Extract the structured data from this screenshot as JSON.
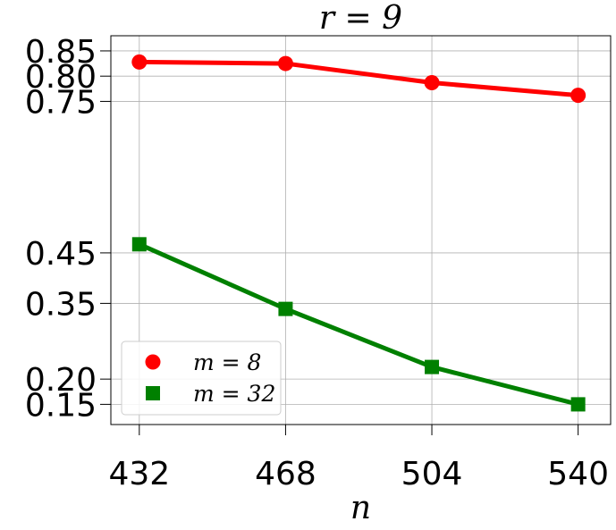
{
  "chart_data": {
    "type": "line",
    "title": "r = 9",
    "xlabel": "n",
    "ylabel": "",
    "x": [
      432,
      468,
      504,
      540
    ],
    "x_ticks": [
      "432",
      "468",
      "504",
      "540"
    ],
    "y_ticks": [
      "0.85",
      "0.80",
      "0.75",
      "0.45",
      "0.35",
      "0.20",
      "0.15"
    ],
    "y_tick_values": [
      0.85,
      0.8,
      0.75,
      0.45,
      0.35,
      0.2,
      0.15
    ],
    "xlim": [
      425,
      548
    ],
    "ylim": [
      0.11,
      0.88
    ],
    "grid": true,
    "legend_position": "lower-left",
    "series": [
      {
        "name": "m = 8",
        "values": [
          0.828,
          0.825,
          0.787,
          0.762
        ],
        "color": "#ff0000",
        "marker": "circle"
      },
      {
        "name": "m = 32",
        "values": [
          0.467,
          0.339,
          0.224,
          0.15
        ],
        "color": "#008000",
        "marker": "square"
      }
    ]
  }
}
